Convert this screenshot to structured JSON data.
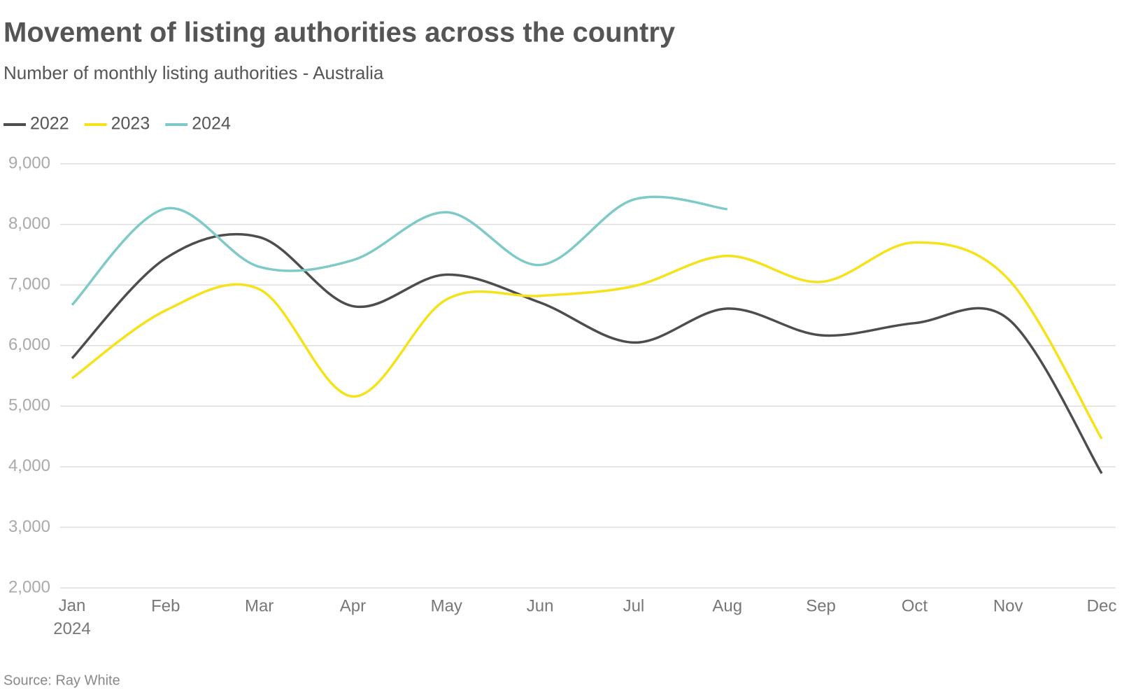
{
  "chart_data": {
    "type": "line",
    "title": "Movement of listing authorities across the country",
    "subtitle": "Number of monthly listing authorities - Australia",
    "source": "Source: Ray White",
    "categories": [
      "Jan 2024",
      "Feb",
      "Mar",
      "Apr",
      "May",
      "Jun",
      "Jul",
      "Aug",
      "Sep",
      "Oct",
      "Nov",
      "Dec"
    ],
    "series": [
      {
        "name": "2022",
        "color": "#4d4d4f",
        "values": [
          5790,
          7440,
          7790,
          6650,
          7170,
          6710,
          6050,
          6610,
          6170,
          6370,
          6440,
          3890
        ]
      },
      {
        "name": "2023",
        "color": "#f5e21b",
        "values": [
          5460,
          6580,
          6930,
          5160,
          6760,
          6820,
          6980,
          7480,
          7050,
          7700,
          7100,
          4460
        ]
      },
      {
        "name": "2024",
        "color": "#7ecac8",
        "values": [
          6670,
          8260,
          7300,
          7410,
          8200,
          7330,
          8410,
          8250,
          null,
          null,
          null,
          null
        ]
      }
    ],
    "ylim": [
      2000,
      9000
    ],
    "yticks": [
      {
        "value": 2000,
        "label": "2,000"
      },
      {
        "value": 3000,
        "label": "3,000"
      },
      {
        "value": 4000,
        "label": "4,000"
      },
      {
        "value": 5000,
        "label": "5,000"
      },
      {
        "value": 6000,
        "label": "6,000"
      },
      {
        "value": 7000,
        "label": "7,000"
      },
      {
        "value": 8000,
        "label": "8,000"
      },
      {
        "value": 9000,
        "label": "9,000"
      }
    ],
    "grid": true,
    "legend": "top-left"
  }
}
